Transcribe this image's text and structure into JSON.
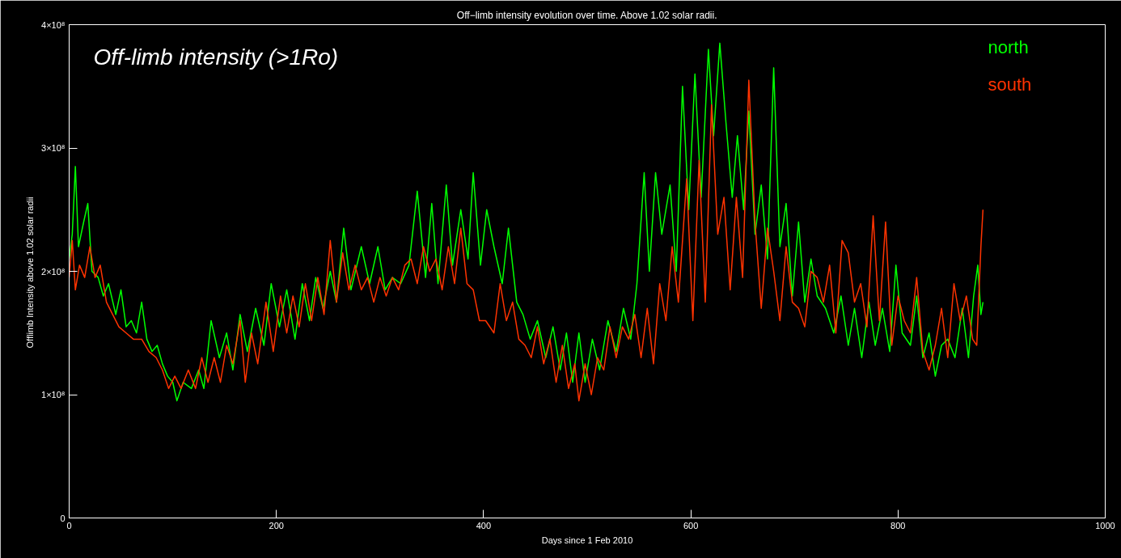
{
  "chart_data": {
    "type": "line",
    "title": "Off−limb intensity evolution over time. Above 1.02 solar radii.",
    "xlabel": "Days since 1 Feb 2010",
    "ylabel": "Offlimb Intensity above  1.02 solar radii",
    "annotations": [
      "Off-limb intensity (>1Ro)"
    ],
    "xlim": [
      0,
      1000
    ],
    "xticks": [
      0,
      200,
      400,
      600,
      800,
      1000
    ],
    "ylim": [
      0,
      400000000.0
    ],
    "yticks": [
      0,
      {
        "value": 100000000.0,
        "label": "1×10⁸"
      },
      {
        "value": 200000000.0,
        "label": "2×10⁸"
      },
      {
        "value": 300000000.0,
        "label": "3×10⁸"
      },
      {
        "value": 400000000.0,
        "label": "4×10⁸"
      }
    ],
    "grid": false,
    "legend": "top right",
    "series": [
      {
        "name": "north",
        "color": "#00ff00",
        "x": [
          0,
          3,
          6,
          9,
          14,
          18,
          22,
          28,
          33,
          38,
          45,
          50,
          55,
          60,
          65,
          70,
          75,
          80,
          85,
          90,
          95,
          100,
          104,
          110,
          118,
          125,
          130,
          137,
          145,
          152,
          158,
          165,
          172,
          180,
          188,
          195,
          203,
          210,
          218,
          225,
          232,
          238,
          245,
          252,
          258,
          265,
          272,
          282,
          290,
          298,
          305,
          312,
          320,
          328,
          336,
          344,
          350,
          356,
          364,
          370,
          378,
          385,
          390,
          397,
          403,
          410,
          418,
          424,
          432,
          438,
          445,
          452,
          460,
          467,
          474,
          480,
          486,
          492,
          498,
          505,
          512,
          520,
          528,
          535,
          542,
          548,
          555,
          560,
          566,
          572,
          580,
          586,
          592,
          598,
          604,
          610,
          617,
          622,
          628,
          634,
          640,
          645,
          651,
          656,
          662,
          668,
          674,
          680,
          686,
          692,
          698,
          704,
          710,
          716,
          722,
          730,
          738,
          745,
          752,
          758,
          765,
          772,
          778,
          785,
          792,
          798,
          804,
          812,
          818,
          824,
          830,
          836,
          842,
          848,
          855,
          862,
          868,
          873,
          877,
          880,
          882
        ],
        "values": [
          210000000.0,
          230000000.0,
          285000000.0,
          220000000.0,
          240000000.0,
          255000000.0,
          200000000.0,
          195000000.0,
          180000000.0,
          190000000.0,
          165000000.0,
          185000000.0,
          155000000.0,
          160000000.0,
          150000000.0,
          175000000.0,
          145000000.0,
          135000000.0,
          140000000.0,
          125000000.0,
          115000000.0,
          110000000.0,
          95000000.0,
          110000000.0,
          105000000.0,
          120000000.0,
          105000000.0,
          160000000.0,
          130000000.0,
          150000000.0,
          120000000.0,
          165000000.0,
          135000000.0,
          170000000.0,
          140000000.0,
          190000000.0,
          155000000.0,
          185000000.0,
          145000000.0,
          190000000.0,
          160000000.0,
          195000000.0,
          170000000.0,
          200000000.0,
          175000000.0,
          235000000.0,
          185000000.0,
          220000000.0,
          190000000.0,
          220000000.0,
          185000000.0,
          195000000.0,
          190000000.0,
          205000000.0,
          265000000.0,
          195000000.0,
          255000000.0,
          190000000.0,
          270000000.0,
          205000000.0,
          250000000.0,
          210000000.0,
          280000000.0,
          205000000.0,
          250000000.0,
          220000000.0,
          190000000.0,
          235000000.0,
          175000000.0,
          165000000.0,
          145000000.0,
          160000000.0,
          130000000.0,
          155000000.0,
          120000000.0,
          150000000.0,
          110000000.0,
          150000000.0,
          110000000.0,
          145000000.0,
          120000000.0,
          160000000.0,
          135000000.0,
          170000000.0,
          145000000.0,
          190000000.0,
          280000000.0,
          200000000.0,
          280000000.0,
          230000000.0,
          270000000.0,
          200000000.0,
          350000000.0,
          250000000.0,
          360000000.0,
          260000000.0,
          380000000.0,
          310000000.0,
          385000000.0,
          320000000.0,
          260000000.0,
          310000000.0,
          250000000.0,
          330000000.0,
          230000000.0,
          270000000.0,
          210000000.0,
          365000000.0,
          220000000.0,
          255000000.0,
          180000000.0,
          240000000.0,
          175000000.0,
          210000000.0,
          180000000.0,
          170000000.0,
          150000000.0,
          180000000.0,
          140000000.0,
          170000000.0,
          130000000.0,
          175000000.0,
          140000000.0,
          170000000.0,
          135000000.0,
          205000000.0,
          150000000.0,
          140000000.0,
          180000000.0,
          130000000.0,
          150000000.0,
          115000000.0,
          140000000.0,
          145000000.0,
          130000000.0,
          170000000.0,
          130000000.0,
          180000000.0,
          205000000.0,
          165000000.0,
          175000000.0
        ]
      },
      {
        "name": "south",
        "color": "#ff3300",
        "x": [
          0,
          3,
          6,
          10,
          15,
          20,
          25,
          30,
          36,
          42,
          48,
          55,
          62,
          70,
          77,
          84,
          90,
          96,
          102,
          108,
          115,
          122,
          128,
          134,
          140,
          146,
          152,
          158,
          165,
          170,
          176,
          182,
          190,
          197,
          204,
          210,
          216,
          222,
          228,
          234,
          240,
          246,
          252,
          258,
          264,
          270,
          276,
          282,
          288,
          294,
          300,
          306,
          312,
          318,
          324,
          330,
          336,
          342,
          348,
          354,
          360,
          366,
          372,
          378,
          384,
          390,
          396,
          402,
          410,
          416,
          422,
          428,
          434,
          440,
          446,
          452,
          458,
          464,
          470,
          476,
          482,
          488,
          492,
          498,
          504,
          510,
          516,
          522,
          528,
          534,
          540,
          546,
          552,
          558,
          564,
          570,
          576,
          582,
          588,
          596,
          602,
          608,
          614,
          620,
          626,
          632,
          638,
          644,
          650,
          656,
          662,
          668,
          674,
          680,
          686,
          692,
          698,
          704,
          710,
          716,
          722,
          728,
          734,
          740,
          746,
          752,
          758,
          764,
          770,
          776,
          782,
          788,
          794,
          800,
          806,
          812,
          818,
          824,
          830,
          836,
          842,
          848,
          854,
          860,
          866,
          872,
          876,
          880,
          882
        ],
        "values": [
          195000000.0,
          225000000.0,
          185000000.0,
          205000000.0,
          195000000.0,
          220000000.0,
          195000000.0,
          205000000.0,
          175000000.0,
          165000000.0,
          155000000.0,
          150000000.0,
          145000000.0,
          145000000.0,
          135000000.0,
          130000000.0,
          120000000.0,
          105000000.0,
          115000000.0,
          105000000.0,
          120000000.0,
          105000000.0,
          130000000.0,
          110000000.0,
          130000000.0,
          110000000.0,
          140000000.0,
          125000000.0,
          160000000.0,
          110000000.0,
          150000000.0,
          125000000.0,
          175000000.0,
          135000000.0,
          180000000.0,
          150000000.0,
          180000000.0,
          155000000.0,
          190000000.0,
          160000000.0,
          195000000.0,
          165000000.0,
          225000000.0,
          175000000.0,
          215000000.0,
          185000000.0,
          205000000.0,
          185000000.0,
          195000000.0,
          175000000.0,
          195000000.0,
          180000000.0,
          195000000.0,
          185000000.0,
          205000000.0,
          210000000.0,
          190000000.0,
          220000000.0,
          200000000.0,
          210000000.0,
          185000000.0,
          220000000.0,
          190000000.0,
          235000000.0,
          190000000.0,
          185000000.0,
          160000000.0,
          160000000.0,
          150000000.0,
          190000000.0,
          160000000.0,
          175000000.0,
          145000000.0,
          140000000.0,
          130000000.0,
          155000000.0,
          125000000.0,
          145000000.0,
          110000000.0,
          140000000.0,
          105000000.0,
          125000000.0,
          95000000.0,
          125000000.0,
          100000000.0,
          130000000.0,
          120000000.0,
          155000000.0,
          130000000.0,
          155000000.0,
          145000000.0,
          165000000.0,
          130000000.0,
          170000000.0,
          125000000.0,
          190000000.0,
          160000000.0,
          220000000.0,
          175000000.0,
          275000000.0,
          160000000.0,
          290000000.0,
          175000000.0,
          335000000.0,
          230000000.0,
          260000000.0,
          185000000.0,
          260000000.0,
          195000000.0,
          355000000.0,
          240000000.0,
          170000000.0,
          235000000.0,
          200000000.0,
          160000000.0,
          220000000.0,
          175000000.0,
          170000000.0,
          155000000.0,
          200000000.0,
          195000000.0,
          175000000.0,
          205000000.0,
          150000000.0,
          225000000.0,
          215000000.0,
          175000000.0,
          190000000.0,
          155000000.0,
          245000000.0,
          160000000.0,
          240000000.0,
          140000000.0,
          180000000.0,
          160000000.0,
          150000000.0,
          195000000.0,
          135000000.0,
          120000000.0,
          140000000.0,
          170000000.0,
          130000000.0,
          190000000.0,
          160000000.0,
          180000000.0,
          145000000.0,
          140000000.0,
          220000000.0,
          250000000.0
        ]
      }
    ]
  }
}
